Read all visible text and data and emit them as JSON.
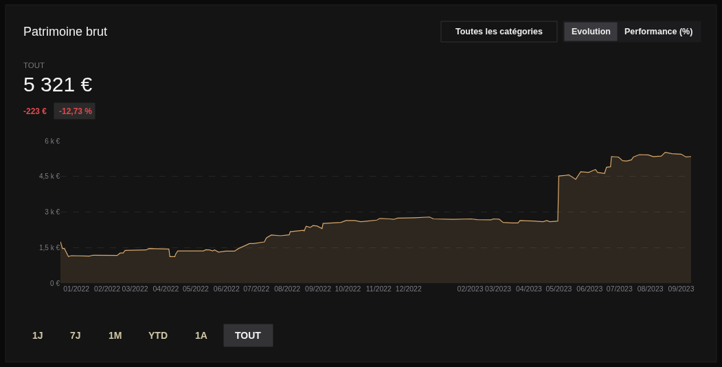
{
  "chart_data": {
    "type": "area",
    "title": "Patrimoine brut",
    "annotations": [
      "Toutes les catégories",
      "Evolution",
      "Performance (%)",
      "TOUT",
      "5 321 €",
      "-223 €",
      "-12,73 %",
      "1J",
      "7J",
      "1M",
      "YTD",
      "1A",
      "TOUT"
    ],
    "x": [
      "2021-12-16",
      "2021-12-18",
      "2021-12-20",
      "2021-12-24",
      "2021-12-27",
      "2022-01-14",
      "2022-01-18",
      "2022-02-11",
      "2022-02-14",
      "2022-02-17",
      "2022-02-19",
      "2022-03-12",
      "2022-03-15",
      "2022-04-04",
      "2022-04-05",
      "2022-04-10",
      "2022-04-11",
      "2022-04-13",
      "2022-05-09",
      "2022-05-11",
      "2022-05-15",
      "2022-05-18",
      "2022-05-20",
      "2022-05-24",
      "2022-05-31",
      "2022-06-09",
      "2022-06-13",
      "2022-06-20",
      "2022-06-24",
      "2022-06-28",
      "2022-07-09",
      "2022-07-11",
      "2022-07-16",
      "2022-07-25",
      "2022-08-03",
      "2022-08-04",
      "2022-08-17",
      "2022-08-18",
      "2022-08-20",
      "2022-08-24",
      "2022-08-27",
      "2022-08-31",
      "2022-09-05",
      "2022-09-06",
      "2022-09-24",
      "2022-09-29",
      "2022-10-08",
      "2022-10-14",
      "2022-10-21",
      "2022-10-30",
      "2022-11-02",
      "2022-11-12",
      "2022-11-16",
      "2022-11-20",
      "2022-12-07",
      "2022-12-22",
      "2022-12-26",
      "2023-01-15",
      "2023-02-02",
      "2023-02-08",
      "2023-02-22",
      "2023-02-24",
      "2023-03-02",
      "2023-03-06",
      "2023-03-15",
      "2023-03-21",
      "2023-03-23",
      "2023-04-06",
      "2023-04-15",
      "2023-04-19",
      "2023-04-22",
      "2023-04-30",
      "2023-05-01",
      "2023-05-08",
      "2023-05-11",
      "2023-05-18",
      "2023-05-23",
      "2023-05-31",
      "2023-06-05",
      "2023-06-07",
      "2023-06-09",
      "2023-06-16",
      "2023-06-18",
      "2023-06-22",
      "2023-06-23",
      "2023-06-30",
      "2023-07-04",
      "2023-07-08",
      "2023-07-13",
      "2023-07-15",
      "2023-07-21",
      "2023-07-30",
      "2023-08-04",
      "2023-08-12",
      "2023-08-16",
      "2023-08-23",
      "2023-09-01",
      "2023-09-06",
      "2023-09-11"
    ],
    "series": [
      {
        "color": "#d9a86c",
        "values": [
          1750,
          1460,
          1460,
          1120,
          1160,
          1140,
          1180,
          1170,
          1270,
          1270,
          1380,
          1400,
          1460,
          1440,
          1120,
          1120,
          1240,
          1360,
          1360,
          1410,
          1400,
          1360,
          1400,
          1310,
          1350,
          1350,
          1460,
          1590,
          1670,
          1670,
          1740,
          1910,
          2030,
          2000,
          2040,
          2170,
          2230,
          2200,
          2400,
          2350,
          2430,
          2410,
          2300,
          2520,
          2560,
          2640,
          2640,
          2590,
          2620,
          2660,
          2730,
          2710,
          2690,
          2740,
          2760,
          2790,
          2710,
          2690,
          2710,
          2680,
          2670,
          2710,
          2700,
          2560,
          2540,
          2540,
          2640,
          2620,
          2590,
          2640,
          2590,
          2620,
          4520,
          4550,
          4570,
          4380,
          4700,
          4670,
          4760,
          4790,
          4670,
          4630,
          4890,
          4910,
          5340,
          5320,
          5170,
          5150,
          5200,
          5320,
          5420,
          5410,
          5340,
          5360,
          5520,
          5460,
          5440,
          5320,
          5340
        ]
      }
    ],
    "xlim": [
      "2021-12-16",
      "2023-09-11"
    ],
    "xticks": [
      {
        "value": "2022-01-01",
        "label": "01/2022"
      },
      {
        "value": "2022-02-01",
        "label": "02/2022"
      },
      {
        "value": "2022-03-01",
        "label": "03/2022"
      },
      {
        "value": "2022-04-01",
        "label": "04/2022"
      },
      {
        "value": "2022-05-01",
        "label": "05/2022"
      },
      {
        "value": "2022-06-01",
        "label": "06/2022"
      },
      {
        "value": "2022-07-01",
        "label": "07/2022"
      },
      {
        "value": "2022-08-01",
        "label": "08/2022"
      },
      {
        "value": "2022-09-01",
        "label": "09/2022"
      },
      {
        "value": "2022-10-01",
        "label": "10/2022"
      },
      {
        "value": "2022-11-01",
        "label": "11/2022"
      },
      {
        "value": "2022-12-01",
        "label": "12/2022"
      },
      {
        "value": "2023-02-01",
        "label": "02/2023"
      },
      {
        "value": "2023-03-01",
        "label": "03/2023"
      },
      {
        "value": "2023-04-01",
        "label": "04/2023"
      },
      {
        "value": "2023-05-01",
        "label": "05/2023"
      },
      {
        "value": "2023-06-01",
        "label": "06/2023"
      },
      {
        "value": "2023-07-01",
        "label": "07/2023"
      },
      {
        "value": "2023-08-01",
        "label": "08/2023"
      },
      {
        "value": "2023-09-01",
        "label": "09/2023"
      }
    ],
    "ylim": [
      0,
      6000
    ],
    "yticks": [
      {
        "value": 0,
        "label": "0 €"
      },
      {
        "value": 1500,
        "label": "1,5 k €"
      },
      {
        "value": 3000,
        "label": "3 k €"
      },
      {
        "value": 4500,
        "label": "4,5 k €"
      },
      {
        "value": 6000,
        "label": "6 k €"
      }
    ],
    "grid": "y",
    "line_style": "solid",
    "marker": "none"
  }
}
